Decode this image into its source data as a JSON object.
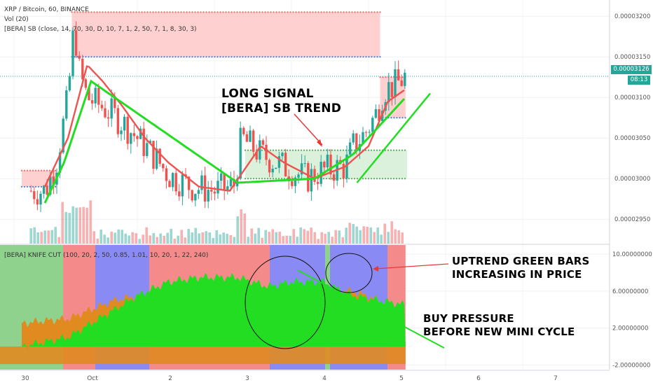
{
  "legend": {
    "symbol": "XRP / Bitcoin, 60, BINANCE",
    "volume": "Vol (20)",
    "bera_sb": "[BERA] SB (close, 14, 70, 30, D, 10, 7, 1, 2, 50, 7, 1, 8, 30, 3)",
    "knife_cut": "[BERA] KNIFE CUT (100, 20, 2, 50, 0.85, 1.01, 10, 20, 1, 22, 240)"
  },
  "annotations": {
    "long_signal": [
      "LONG SIGNAL",
      "[BERA] SB TREND"
    ],
    "uptrend": [
      "UPTREND GREEN BARS",
      "INCREASING IN PRICE"
    ],
    "buy_pressure": [
      "BUY PRESSURE",
      "BEFORE NEW MINI CYCLE"
    ]
  },
  "price_tag": {
    "price": "0.00003126",
    "countdown": "08:13"
  },
  "colors": {
    "up": "#26a69a",
    "down": "#ef5350",
    "ma": "#ef5350",
    "trend": "#22dd22",
    "red_zone": "#ffc8c8",
    "green_zone": "#d6efd6",
    "osc_green": "#22dd22",
    "osc_orange": "#e08a20",
    "osc_red_bg": "#f48a8a",
    "osc_blue_bg": "#8a8af4",
    "osc_green_bg": "#8ed28e"
  },
  "chart_data": [
    {
      "type": "candlestick",
      "title": "XRP / Bitcoin, 60, BINANCE",
      "x_ticks": [
        "30",
        "Oct",
        "2",
        "3",
        "4",
        "5",
        "6",
        "7"
      ],
      "y_ticks": [
        "0.00002950",
        "0.00003000",
        "0.00003050",
        "0.00003100",
        "0.00003150",
        "0.00003200"
      ],
      "ylim": [
        2.92e-05,
        3.22e-05
      ],
      "last_price": 3.126e-05,
      "close_path": [
        [
          0.0,
          2.985e-05
        ],
        [
          0.05,
          2.995e-05
        ],
        [
          0.15,
          3.02e-05
        ],
        [
          0.3,
          3.1e-05
        ],
        [
          0.38,
          3.19e-05
        ],
        [
          0.45,
          3.13e-05
        ],
        [
          0.55,
          3.1e-05
        ],
        [
          0.8,
          3.085e-05
        ],
        [
          1.0,
          3.07e-05
        ],
        [
          1.2,
          3.05e-05
        ],
        [
          1.4,
          3.03e-05
        ],
        [
          1.6,
          3.005e-05
        ],
        [
          1.9,
          2.99e-05
        ],
        [
          2.2,
          2.985e-05
        ],
        [
          2.45,
          2.99e-05
        ],
        [
          2.55,
          3.05e-05
        ],
        [
          2.8,
          3.03e-05
        ],
        [
          3.0,
          3.02e-05
        ],
        [
          3.2,
          3.01e-05
        ],
        [
          3.4,
          3e-05
        ],
        [
          3.6,
          3.01e-05
        ],
        [
          3.9,
          3.015e-05
        ],
        [
          4.0,
          3.04e-05
        ],
        [
          4.15,
          3.055e-05
        ],
        [
          4.3,
          3.08e-05
        ],
        [
          4.4,
          3.11e-05
        ],
        [
          4.55,
          3.115e-05
        ],
        [
          4.68,
          3.126e-05
        ]
      ],
      "ma_path": [
        [
          0.0,
          2.99e-05
        ],
        [
          0.3,
          3.05e-05
        ],
        [
          0.55,
          3.14e-05
        ],
        [
          0.75,
          3.12e-05
        ],
        [
          1.0,
          3.09e-05
        ],
        [
          1.3,
          3.05e-05
        ],
        [
          1.6,
          3.02e-05
        ],
        [
          2.0,
          2.99e-05
        ],
        [
          2.4,
          2.985e-05
        ],
        [
          2.8,
          3.04e-05
        ],
        [
          3.1,
          3.02e-05
        ],
        [
          3.5,
          3e-05
        ],
        [
          3.9,
          3.015e-05
        ],
        [
          4.2,
          3.04e-05
        ],
        [
          4.45,
          3.095e-05
        ],
        [
          4.68,
          3.11e-05
        ]
      ],
      "trend_path": [
        [
          0.0,
          2.97e-05
        ],
        [
          0.25,
          3.02e-05
        ],
        [
          0.6,
          3.12e-05
        ],
        [
          2.5,
          2.995e-05
        ],
        [
          3.5,
          3e-05
        ],
        [
          4.0,
          3.03e-05
        ],
        [
          4.68,
          3.1e-05
        ]
      ],
      "trend_line_extension": [
        [
          4.05,
          2.995e-05
        ],
        [
          5.0,
          3.105e-05
        ]
      ],
      "zones": [
        {
          "kind": "red",
          "x": [
            0.35,
            4.35
          ],
          "y": [
            3.15e-05,
            3.205e-05
          ]
        },
        {
          "kind": "red",
          "x": [
            4.35,
            4.68
          ],
          "y": [
            3.075e-05,
            3.125e-05
          ]
        },
        {
          "kind": "red",
          "x": [
            -0.3,
            0.15
          ],
          "y": [
            2.99e-05,
            3.01e-05
          ]
        },
        {
          "kind": "green",
          "x": [
            2.6,
            4.7
          ],
          "y": [
            3e-05,
            3.035e-05
          ]
        }
      ]
    },
    {
      "type": "area",
      "title": "[BERA] KNIFE CUT",
      "y_ticks": [
        "-2.00000000",
        "2.00000000",
        "6.00000000",
        "10.00000000"
      ],
      "ylim": [
        -2.5,
        11.0
      ],
      "green_path": [
        [
          -0.3,
          0
        ],
        [
          0.0,
          0.5
        ],
        [
          0.3,
          1.0
        ],
        [
          0.6,
          2.5
        ],
        [
          0.9,
          4.0
        ],
        [
          1.2,
          5.5
        ],
        [
          1.6,
          7.0
        ],
        [
          2.0,
          7.5
        ],
        [
          2.5,
          7.5
        ],
        [
          2.9,
          6.5
        ],
        [
          3.2,
          7.0
        ],
        [
          3.6,
          7.0
        ],
        [
          4.0,
          5.5
        ],
        [
          4.68,
          4.5
        ]
      ],
      "orange_path": [
        [
          -0.3,
          2.5
        ],
        [
          0.0,
          2.8
        ],
        [
          0.3,
          3.0
        ],
        [
          0.6,
          4.0
        ],
        [
          0.9,
          5.0
        ],
        [
          1.2,
          5.5
        ],
        [
          1.6,
          5.0
        ],
        [
          2.0,
          4.5
        ],
        [
          2.5,
          4.5
        ],
        [
          2.9,
          4.0
        ],
        [
          3.2,
          5.0
        ],
        [
          3.6,
          6.0
        ],
        [
          4.0,
          6.0
        ],
        [
          4.68,
          4.0
        ]
      ],
      "lines": [
        [
          3.8,
          8.0
        ],
        [
          4.68,
          5.5
        ]
      ]
    }
  ]
}
